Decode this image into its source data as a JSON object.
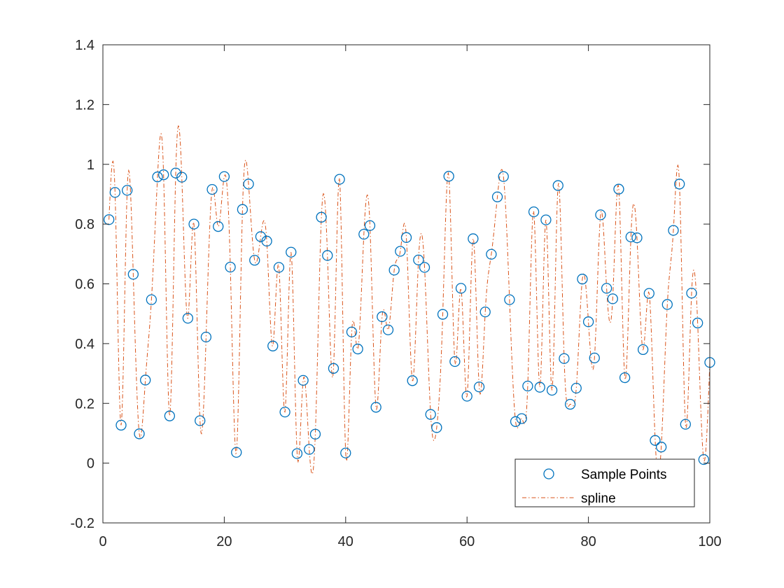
{
  "chart_data": {
    "type": "scatter",
    "title": "",
    "xlabel": "",
    "ylabel": "",
    "xlim": [
      0,
      100
    ],
    "ylim": [
      -0.2,
      1.4
    ],
    "xticks": [
      0,
      20,
      40,
      60,
      80,
      100
    ],
    "yticks": [
      -0.2,
      0,
      0.2,
      0.4,
      0.6,
      0.8,
      1,
      1.2,
      1.4
    ],
    "xtick_labels": [
      "0",
      "20",
      "40",
      "60",
      "80",
      "100"
    ],
    "ytick_labels": [
      "-0.2",
      "0",
      "0.2",
      "0.4",
      "0.6",
      "0.8",
      "1",
      "1.2",
      "1.4"
    ],
    "grid": false,
    "legend_position": "bottom-right",
    "series": [
      {
        "name": "Sample Points",
        "type": "scatter",
        "marker": "circle",
        "color": "#0072BD",
        "x": [
          1,
          2,
          3,
          4,
          5,
          6,
          7,
          8,
          9,
          10,
          11,
          12,
          13,
          14,
          15,
          16,
          17,
          18,
          19,
          20,
          21,
          22,
          23,
          24,
          25,
          26,
          27,
          28,
          29,
          30,
          31,
          32,
          33,
          34,
          35,
          36,
          37,
          38,
          39,
          40,
          41,
          42,
          43,
          44,
          45,
          46,
          47,
          48,
          49,
          50,
          51,
          52,
          53,
          54,
          55,
          56,
          57,
          58,
          59,
          60,
          61,
          62,
          63,
          64,
          65,
          66,
          67,
          68,
          69,
          70,
          71,
          72,
          73,
          74,
          75,
          76,
          77,
          78,
          79,
          80,
          81,
          82,
          83,
          84,
          85,
          86,
          87,
          88,
          89,
          90,
          91,
          92,
          93,
          94,
          95,
          96,
          97,
          98,
          99,
          100
        ],
        "y": [
          0.815,
          0.906,
          0.127,
          0.913,
          0.632,
          0.098,
          0.278,
          0.547,
          0.958,
          0.965,
          0.158,
          0.971,
          0.957,
          0.485,
          0.8,
          0.142,
          0.422,
          0.916,
          0.792,
          0.959,
          0.656,
          0.036,
          0.849,
          0.934,
          0.679,
          0.758,
          0.743,
          0.392,
          0.655,
          0.171,
          0.706,
          0.032,
          0.277,
          0.046,
          0.097,
          0.823,
          0.695,
          0.317,
          0.95,
          0.034,
          0.439,
          0.382,
          0.766,
          0.795,
          0.187,
          0.49,
          0.446,
          0.646,
          0.709,
          0.755,
          0.276,
          0.68,
          0.655,
          0.163,
          0.119,
          0.498,
          0.96,
          0.34,
          0.585,
          0.224,
          0.751,
          0.255,
          0.506,
          0.699,
          0.891,
          0.959,
          0.547,
          0.139,
          0.149,
          0.258,
          0.841,
          0.254,
          0.814,
          0.244,
          0.929,
          0.35,
          0.197,
          0.251,
          0.616,
          0.473,
          0.352,
          0.831,
          0.585,
          0.55,
          0.917,
          0.286,
          0.757,
          0.754,
          0.38,
          0.568,
          0.076,
          0.054,
          0.531,
          0.779,
          0.934,
          0.13,
          0.569,
          0.469,
          0.012,
          0.337
        ]
      },
      {
        "name": "spline",
        "type": "line",
        "line_style": "dash-dot",
        "color": "#D95319",
        "interpolation": "cubic-spline-through-sample-points"
      }
    ]
  }
}
